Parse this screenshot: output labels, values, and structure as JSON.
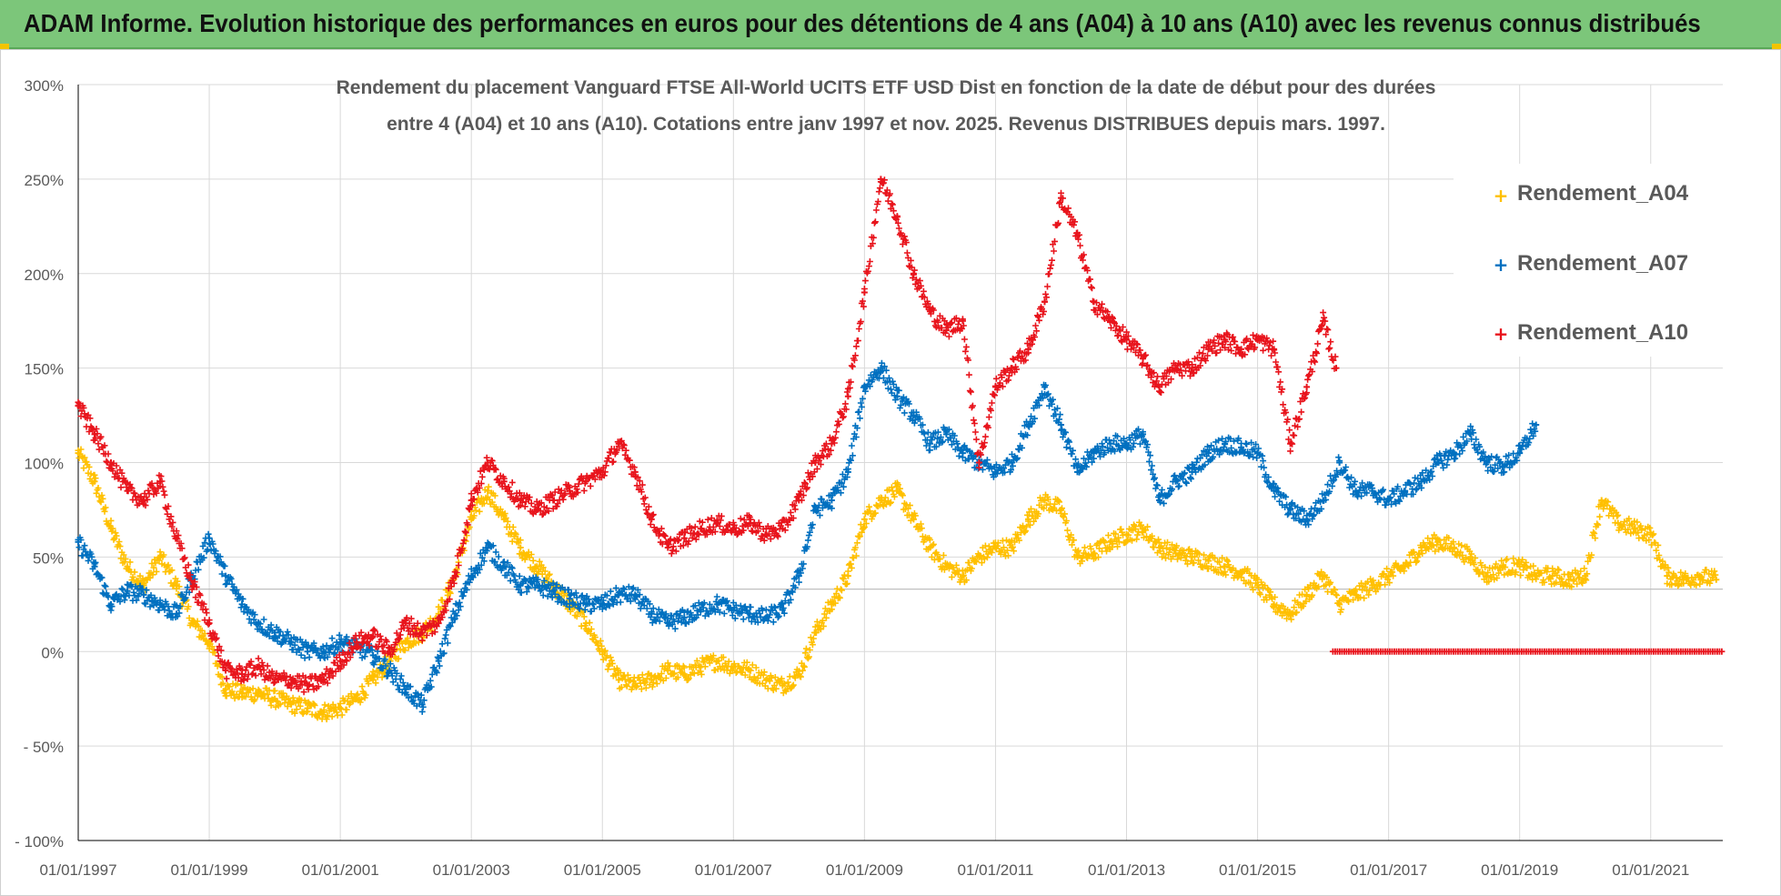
{
  "banner": {
    "title": "ADAM Informe. Evolution historique des performances en euros pour des détentions de 4 ans (A04) à 10 ans (A10) avec les revenus connus distribués"
  },
  "colors": {
    "banner": "#7cc67a",
    "A04": "#ffc000",
    "A07": "#0070c0",
    "A10": "#e8141c",
    "grid": "#d9d9d9"
  },
  "chart_data": {
    "type": "scatter",
    "title_lines": [
      "Rendement du placement Vanguard FTSE All-World UCITS ETF USD Dist en fonction de la date de début pour des durées",
      "entre 4 (A04) et 10 ans (A10). Cotations entre janv 1997 et nov. 2025. Revenus DISTRIBUES depuis mars. 1997."
    ],
    "x_range": [
      1997.0,
      2022.1
    ],
    "ylim": [
      -100,
      300
    ],
    "y_ticks": [
      300,
      250,
      200,
      150,
      100,
      50,
      0,
      -50,
      -100
    ],
    "y_tick_labels": [
      "300%",
      "250%",
      "200%",
      "150%",
      "100%",
      "50%",
      "0%",
      "- 50%",
      "- 100%"
    ],
    "x_ticks": [
      1997,
      1999,
      2001,
      2003,
      2005,
      2007,
      2009,
      2011,
      2013,
      2015,
      2017,
      2019,
      2021
    ],
    "x_tick_labels": [
      "01/01/1997",
      "01/01/1999",
      "01/01/2001",
      "01/01/2003",
      "01/01/2005",
      "01/01/2007",
      "01/01/2009",
      "01/01/2011",
      "01/01/2013",
      "01/01/2015",
      "01/01/2017",
      "01/01/2019",
      "01/01/2021"
    ],
    "reference_line_y": 33,
    "legend": [
      "Rendement_A04",
      "Rendement_A07",
      "Rendement_A10"
    ],
    "series": [
      {
        "name": "Rendement_A04",
        "color": "#ffc000",
        "points": [
          [
            1997.0,
            105
          ],
          [
            1997.25,
            90
          ],
          [
            1997.5,
            65
          ],
          [
            1997.75,
            45
          ],
          [
            1998.0,
            35
          ],
          [
            1998.25,
            50
          ],
          [
            1998.5,
            35
          ],
          [
            1998.75,
            15
          ],
          [
            1999.0,
            5
          ],
          [
            1999.25,
            -20
          ],
          [
            1999.5,
            -22
          ],
          [
            1999.75,
            -22
          ],
          [
            2000.0,
            -25
          ],
          [
            2000.25,
            -28
          ],
          [
            2000.5,
            -30
          ],
          [
            2000.75,
            -32
          ],
          [
            2001.0,
            -30
          ],
          [
            2001.25,
            -25
          ],
          [
            2001.5,
            -15
          ],
          [
            2001.75,
            -5
          ],
          [
            2002.0,
            5
          ],
          [
            2002.25,
            10
          ],
          [
            2002.5,
            20
          ],
          [
            2002.75,
            40
          ],
          [
            2003.0,
            70
          ],
          [
            2003.25,
            85
          ],
          [
            2003.5,
            70
          ],
          [
            2003.75,
            55
          ],
          [
            2004.0,
            45
          ],
          [
            2004.25,
            35
          ],
          [
            2004.5,
            25
          ],
          [
            2004.75,
            15
          ],
          [
            2005.0,
            0
          ],
          [
            2005.25,
            -15
          ],
          [
            2005.5,
            -18
          ],
          [
            2005.75,
            -15
          ],
          [
            2006.0,
            -10
          ],
          [
            2006.25,
            -12
          ],
          [
            2006.5,
            -8
          ],
          [
            2006.75,
            -5
          ],
          [
            2007.0,
            -8
          ],
          [
            2007.25,
            -10
          ],
          [
            2007.5,
            -15
          ],
          [
            2007.75,
            -18
          ],
          [
            2008.0,
            -12
          ],
          [
            2008.25,
            10
          ],
          [
            2008.5,
            25
          ],
          [
            2008.75,
            40
          ],
          [
            2009.0,
            70
          ],
          [
            2009.25,
            80
          ],
          [
            2009.5,
            85
          ],
          [
            2009.75,
            70
          ],
          [
            2010.0,
            55
          ],
          [
            2010.25,
            45
          ],
          [
            2010.5,
            40
          ],
          [
            2010.75,
            50
          ],
          [
            2011.0,
            55
          ],
          [
            2011.25,
            55
          ],
          [
            2011.5,
            70
          ],
          [
            2011.75,
            80
          ],
          [
            2012.0,
            75
          ],
          [
            2012.25,
            50
          ],
          [
            2012.5,
            52
          ],
          [
            2012.75,
            58
          ],
          [
            2013.0,
            62
          ],
          [
            2013.25,
            65
          ],
          [
            2013.5,
            55
          ],
          [
            2013.75,
            52
          ],
          [
            2014.0,
            50
          ],
          [
            2014.25,
            48
          ],
          [
            2014.5,
            45
          ],
          [
            2014.75,
            42
          ],
          [
            2015.0,
            35
          ],
          [
            2015.25,
            25
          ],
          [
            2015.5,
            20
          ],
          [
            2015.75,
            30
          ],
          [
            2016.0,
            40
          ],
          [
            2016.25,
            25
          ],
          [
            2016.5,
            30
          ],
          [
            2016.75,
            35
          ],
          [
            2017.0,
            40
          ],
          [
            2017.25,
            45
          ],
          [
            2017.5,
            55
          ],
          [
            2017.75,
            58
          ],
          [
            2018.0,
            55
          ],
          [
            2018.25,
            50
          ],
          [
            2018.5,
            40
          ],
          [
            2018.75,
            45
          ],
          [
            2019.0,
            45
          ],
          [
            2019.25,
            40
          ],
          [
            2019.5,
            40
          ],
          [
            2019.75,
            38
          ],
          [
            2020.0,
            40
          ],
          [
            2020.25,
            80
          ],
          [
            2020.5,
            68
          ],
          [
            2020.75,
            65
          ],
          [
            2021.0,
            62
          ],
          [
            2021.25,
            40
          ],
          [
            2021.5,
            38
          ],
          [
            2021.75,
            40
          ],
          [
            2022.0,
            38
          ]
        ]
      },
      {
        "name": "Rendement_A07",
        "color": "#0070c0",
        "points": [
          [
            1997.0,
            58
          ],
          [
            1997.25,
            45
          ],
          [
            1997.5,
            25
          ],
          [
            1997.75,
            32
          ],
          [
            1998.0,
            30
          ],
          [
            1998.25,
            25
          ],
          [
            1998.5,
            20
          ],
          [
            1998.75,
            40
          ],
          [
            1999.0,
            60
          ],
          [
            1999.25,
            40
          ],
          [
            1999.5,
            25
          ],
          [
            1999.75,
            15
          ],
          [
            2000.0,
            10
          ],
          [
            2000.25,
            5
          ],
          [
            2000.5,
            0
          ],
          [
            2000.75,
            0
          ],
          [
            2001.0,
            5
          ],
          [
            2001.25,
            2
          ],
          [
            2001.5,
            -2
          ],
          [
            2001.75,
            -10
          ],
          [
            2002.0,
            -20
          ],
          [
            2002.25,
            -28
          ],
          [
            2002.5,
            -5
          ],
          [
            2002.75,
            20
          ],
          [
            2003.0,
            40
          ],
          [
            2003.25,
            55
          ],
          [
            2003.5,
            45
          ],
          [
            2003.75,
            35
          ],
          [
            2004.0,
            35
          ],
          [
            2004.25,
            32
          ],
          [
            2004.5,
            28
          ],
          [
            2004.75,
            25
          ],
          [
            2005.0,
            25
          ],
          [
            2005.25,
            30
          ],
          [
            2005.5,
            30
          ],
          [
            2005.75,
            20
          ],
          [
            2006.0,
            15
          ],
          [
            2006.25,
            18
          ],
          [
            2006.5,
            22
          ],
          [
            2006.75,
            25
          ],
          [
            2007.0,
            22
          ],
          [
            2007.25,
            20
          ],
          [
            2007.5,
            18
          ],
          [
            2007.75,
            22
          ],
          [
            2008.0,
            40
          ],
          [
            2008.25,
            75
          ],
          [
            2008.5,
            80
          ],
          [
            2008.75,
            95
          ],
          [
            2009.0,
            140
          ],
          [
            2009.25,
            150
          ],
          [
            2009.5,
            135
          ],
          [
            2009.75,
            125
          ],
          [
            2010.0,
            110
          ],
          [
            2010.25,
            115
          ],
          [
            2010.5,
            105
          ],
          [
            2010.75,
            100
          ],
          [
            2011.0,
            95
          ],
          [
            2011.25,
            100
          ],
          [
            2011.5,
            120
          ],
          [
            2011.75,
            140
          ],
          [
            2012.0,
            120
          ],
          [
            2012.25,
            95
          ],
          [
            2012.5,
            105
          ],
          [
            2012.75,
            110
          ],
          [
            2013.0,
            110
          ],
          [
            2013.25,
            115
          ],
          [
            2013.5,
            80
          ],
          [
            2013.75,
            90
          ],
          [
            2014.0,
            95
          ],
          [
            2014.25,
            105
          ],
          [
            2014.5,
            110
          ],
          [
            2014.75,
            108
          ],
          [
            2015.0,
            105
          ],
          [
            2015.25,
            85
          ],
          [
            2015.5,
            75
          ],
          [
            2015.75,
            70
          ],
          [
            2016.0,
            80
          ],
          [
            2016.25,
            100
          ],
          [
            2016.5,
            85
          ],
          [
            2016.75,
            85
          ],
          [
            2017.0,
            80
          ],
          [
            2017.25,
            85
          ],
          [
            2017.5,
            90
          ],
          [
            2017.75,
            100
          ],
          [
            2018.0,
            105
          ],
          [
            2018.25,
            115
          ],
          [
            2018.5,
            100
          ],
          [
            2018.75,
            98
          ],
          [
            2019.0,
            105
          ],
          [
            2019.25,
            120
          ]
        ]
      },
      {
        "name": "Rendement_A10",
        "color": "#e8141c",
        "points": [
          [
            1997.0,
            130
          ],
          [
            1997.25,
            115
          ],
          [
            1997.5,
            100
          ],
          [
            1997.75,
            85
          ],
          [
            1998.0,
            80
          ],
          [
            1998.25,
            90
          ],
          [
            1998.5,
            60
          ],
          [
            1998.75,
            35
          ],
          [
            1999.0,
            15
          ],
          [
            1999.25,
            -10
          ],
          [
            1999.5,
            -12
          ],
          [
            1999.75,
            -8
          ],
          [
            2000.0,
            -15
          ],
          [
            2000.25,
            -15
          ],
          [
            2000.5,
            -18
          ],
          [
            2000.75,
            -15
          ],
          [
            2001.0,
            -5
          ],
          [
            2001.25,
            5
          ],
          [
            2001.5,
            8
          ],
          [
            2001.75,
            0
          ],
          [
            2002.0,
            15
          ],
          [
            2002.25,
            10
          ],
          [
            2002.5,
            15
          ],
          [
            2002.75,
            40
          ],
          [
            2003.0,
            80
          ],
          [
            2003.25,
            100
          ],
          [
            2003.5,
            90
          ],
          [
            2003.75,
            80
          ],
          [
            2004.0,
            75
          ],
          [
            2004.25,
            80
          ],
          [
            2004.5,
            85
          ],
          [
            2004.75,
            90
          ],
          [
            2005.0,
            95
          ],
          [
            2005.25,
            110
          ],
          [
            2005.5,
            95
          ],
          [
            2005.75,
            70
          ],
          [
            2006.0,
            55
          ],
          [
            2006.25,
            60
          ],
          [
            2006.5,
            65
          ],
          [
            2006.75,
            68
          ],
          [
            2007.0,
            65
          ],
          [
            2007.25,
            68
          ],
          [
            2007.5,
            62
          ],
          [
            2007.75,
            65
          ],
          [
            2008.0,
            80
          ],
          [
            2008.25,
            100
          ],
          [
            2008.5,
            110
          ],
          [
            2008.75,
            135
          ],
          [
            2009.0,
            190
          ],
          [
            2009.25,
            250
          ],
          [
            2009.5,
            230
          ],
          [
            2009.75,
            200
          ],
          [
            2010.0,
            180
          ],
          [
            2010.25,
            170
          ],
          [
            2010.5,
            175
          ],
          [
            2010.75,
            100
          ],
          [
            2011.0,
            140
          ],
          [
            2011.25,
            150
          ],
          [
            2011.5,
            160
          ],
          [
            2011.75,
            185
          ],
          [
            2012.0,
            240
          ],
          [
            2012.25,
            220
          ],
          [
            2012.5,
            185
          ],
          [
            2012.75,
            175
          ],
          [
            2013.0,
            165
          ],
          [
            2013.25,
            155
          ],
          [
            2013.5,
            140
          ],
          [
            2013.75,
            150
          ],
          [
            2014.0,
            150
          ],
          [
            2014.25,
            160
          ],
          [
            2014.5,
            165
          ],
          [
            2014.75,
            160
          ],
          [
            2015.0,
            165
          ],
          [
            2015.25,
            160
          ],
          [
            2015.5,
            110
          ],
          [
            2015.75,
            140
          ],
          [
            2016.0,
            175
          ],
          [
            2016.2,
            150
          ]
        ]
      }
    ],
    "a10_zero_from": 2016.15,
    "a10_zero_to": 2022.1
  }
}
